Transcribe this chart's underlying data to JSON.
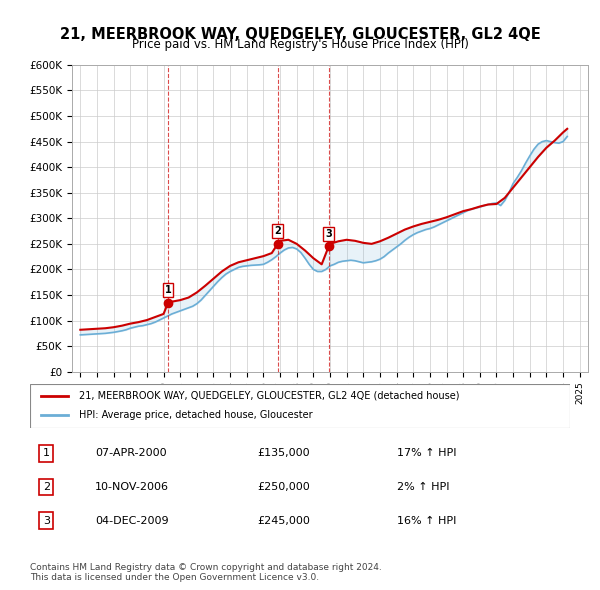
{
  "title": "21, MEERBROOK WAY, QUEDGELEY, GLOUCESTER, GL2 4QE",
  "subtitle": "Price paid vs. HM Land Registry's House Price Index (HPI)",
  "xlabel": "",
  "ylabel": "",
  "ylim": [
    0,
    600000
  ],
  "yticks": [
    0,
    50000,
    100000,
    150000,
    200000,
    250000,
    300000,
    350000,
    400000,
    450000,
    500000,
    550000,
    600000
  ],
  "background_color": "#ffffff",
  "grid_color": "#cccccc",
  "legend_label_red": "21, MEERBROOK WAY, QUEDGELEY, GLOUCESTER, GL2 4QE (detached house)",
  "legend_label_blue": "HPI: Average price, detached house, Gloucester",
  "sale_label": "1",
  "transactions": [
    {
      "num": "1",
      "date": "07-APR-2000",
      "price": 135000,
      "year": 2000.27,
      "hpi_pct": "17% ↑ HPI"
    },
    {
      "num": "2",
      "date": "10-NOV-2006",
      "price": 250000,
      "year": 2006.86,
      "hpi_pct": "2% ↑ HPI"
    },
    {
      "num": "3",
      "date": "04-DEC-2009",
      "price": 245000,
      "year": 2009.92,
      "hpi_pct": "16% ↑ HPI"
    }
  ],
  "footer_line1": "Contains HM Land Registry data © Crown copyright and database right 2024.",
  "footer_line2": "This data is licensed under the Open Government Licence v3.0.",
  "hpi_color": "#6baed6",
  "sale_color": "#cc0000",
  "vline_color": "#cc0000",
  "hpi_data": {
    "years": [
      1995,
      1995.25,
      1995.5,
      1995.75,
      1996,
      1996.25,
      1996.5,
      1996.75,
      1997,
      1997.25,
      1997.5,
      1997.75,
      1998,
      1998.25,
      1998.5,
      1998.75,
      1999,
      1999.25,
      1999.5,
      1999.75,
      2000,
      2000.25,
      2000.5,
      2000.75,
      2001,
      2001.25,
      2001.5,
      2001.75,
      2002,
      2002.25,
      2002.5,
      2002.75,
      2003,
      2003.25,
      2003.5,
      2003.75,
      2004,
      2004.25,
      2004.5,
      2004.75,
      2005,
      2005.25,
      2005.5,
      2005.75,
      2006,
      2006.25,
      2006.5,
      2006.75,
      2007,
      2007.25,
      2007.5,
      2007.75,
      2008,
      2008.25,
      2008.5,
      2008.75,
      2009,
      2009.25,
      2009.5,
      2009.75,
      2010,
      2010.25,
      2010.5,
      2010.75,
      2011,
      2011.25,
      2011.5,
      2011.75,
      2012,
      2012.25,
      2012.5,
      2012.75,
      2013,
      2013.25,
      2013.5,
      2013.75,
      2014,
      2014.25,
      2014.5,
      2014.75,
      2015,
      2015.25,
      2015.5,
      2015.75,
      2016,
      2016.25,
      2016.5,
      2016.75,
      2017,
      2017.25,
      2017.5,
      2017.75,
      2018,
      2018.25,
      2018.5,
      2018.75,
      2019,
      2019.25,
      2019.5,
      2019.75,
      2020,
      2020.25,
      2020.5,
      2020.75,
      2021,
      2021.25,
      2021.5,
      2021.75,
      2022,
      2022.25,
      2022.5,
      2022.75,
      2023,
      2023.25,
      2023.5,
      2023.75,
      2024,
      2024.25
    ],
    "values": [
      72000,
      72500,
      73000,
      73500,
      74000,
      74500,
      75000,
      76000,
      77000,
      78500,
      80000,
      82000,
      85000,
      87000,
      89000,
      90000,
      92000,
      94000,
      97000,
      101000,
      105000,
      109000,
      113000,
      116000,
      119000,
      122000,
      125000,
      128000,
      133000,
      140000,
      149000,
      158000,
      167000,
      176000,
      184000,
      191000,
      196000,
      200000,
      204000,
      206000,
      207000,
      208000,
      208500,
      209000,
      210000,
      214000,
      219000,
      225000,
      232000,
      238000,
      242000,
      243000,
      240000,
      233000,
      222000,
      210000,
      200000,
      196000,
      196000,
      200000,
      207000,
      210000,
      214000,
      216000,
      217000,
      218000,
      217000,
      215000,
      213000,
      214000,
      215000,
      217000,
      220000,
      225000,
      232000,
      238000,
      244000,
      250000,
      257000,
      263000,
      268000,
      272000,
      275000,
      278000,
      280000,
      283000,
      287000,
      291000,
      295000,
      299000,
      303000,
      307000,
      311000,
      315000,
      318000,
      320000,
      322000,
      325000,
      327000,
      329000,
      330000,
      325000,
      335000,
      350000,
      368000,
      380000,
      393000,
      408000,
      422000,
      435000,
      445000,
      450000,
      452000,
      450000,
      448000,
      447000,
      450000,
      460000
    ]
  },
  "price_paid_data": {
    "years": [
      1995,
      1995.5,
      1996,
      1996.5,
      1997,
      1997.5,
      1998,
      1998.5,
      1999,
      1999.5,
      2000,
      2000.27,
      2000.5,
      2001,
      2001.5,
      2002,
      2002.5,
      2003,
      2003.5,
      2004,
      2004.5,
      2005,
      2005.5,
      2006,
      2006.5,
      2006.86,
      2007,
      2007.5,
      2008,
      2008.5,
      2009,
      2009.5,
      2009.92,
      2010,
      2010.5,
      2011,
      2011.5,
      2012,
      2012.5,
      2013,
      2013.5,
      2014,
      2014.5,
      2015,
      2015.5,
      2016,
      2016.5,
      2017,
      2017.5,
      2018,
      2018.5,
      2019,
      2019.5,
      2020,
      2020.5,
      2021,
      2021.5,
      2022,
      2022.5,
      2023,
      2023.5,
      2024,
      2024.25
    ],
    "values": [
      82000,
      83000,
      84000,
      85000,
      87000,
      90000,
      94000,
      97000,
      101000,
      107000,
      113000,
      135000,
      137000,
      140000,
      145000,
      155000,
      168000,
      182000,
      196000,
      207000,
      214000,
      218000,
      222000,
      226000,
      232000,
      250000,
      256000,
      258000,
      250000,
      237000,
      222000,
      210000,
      245000,
      250000,
      255000,
      258000,
      256000,
      252000,
      250000,
      255000,
      262000,
      270000,
      278000,
      284000,
      289000,
      293000,
      297000,
      302000,
      308000,
      314000,
      318000,
      323000,
      327000,
      328000,
      340000,
      360000,
      380000,
      400000,
      420000,
      438000,
      452000,
      468000,
      475000
    ]
  }
}
